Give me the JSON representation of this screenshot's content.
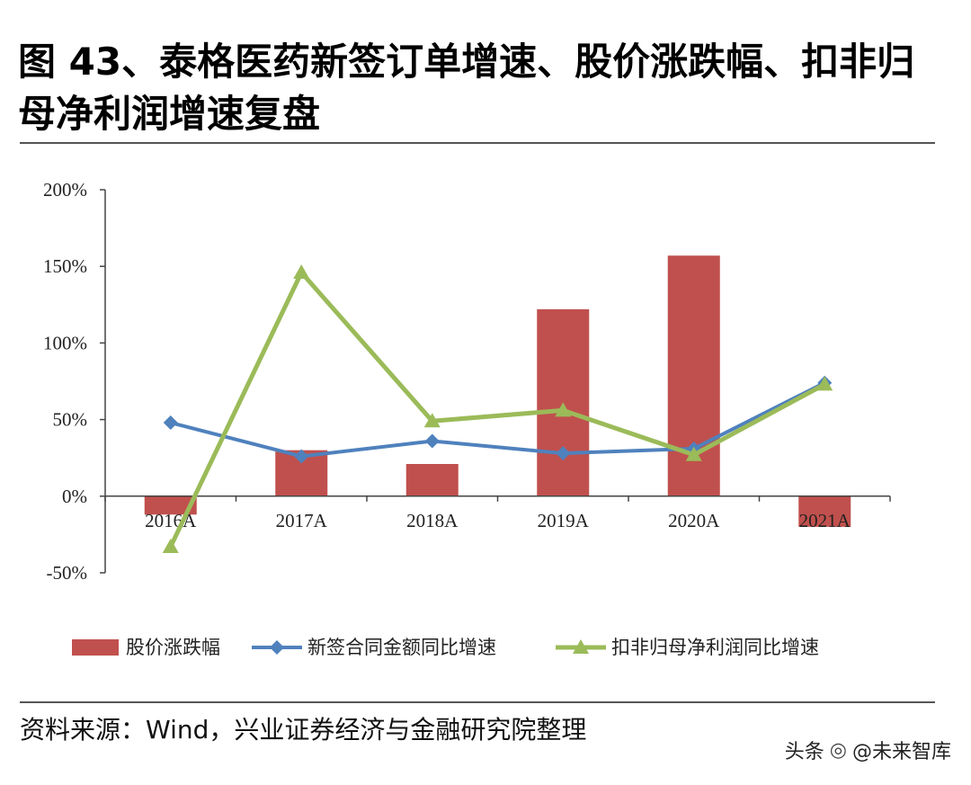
{
  "title": "图 43、泰格医药新签订单增速、股价涨跌幅、扣非归母净利润增速复盘",
  "source": "资料来源：Wind，兴业证券经济与金融研究院整理",
  "watermark": {
    "prefix": "头条",
    "handle": "@未来智库"
  },
  "colors": {
    "bar": "#c0504d",
    "blue": "#4f81bd",
    "green": "#9bbb59",
    "axis": "#444444"
  },
  "chart_data": {
    "type": "bar+line",
    "categories": [
      "2016A",
      "2017A",
      "2018A",
      "2019A",
      "2020A",
      "2021A"
    ],
    "ylim": [
      -50,
      200
    ],
    "yticks": [
      -50,
      0,
      50,
      100,
      150,
      200
    ],
    "ytick_labels": [
      "-50%",
      "0%",
      "50%",
      "100%",
      "150%",
      "200%"
    ],
    "series": [
      {
        "name": "股价涨跌幅",
        "kind": "bar",
        "color": "#c0504d",
        "values": [
          -12,
          30,
          21,
          122,
          157,
          -20
        ]
      },
      {
        "name": "新签合同金额同比增速",
        "kind": "line",
        "marker": "diamond",
        "color": "#4f81bd",
        "values": [
          48,
          26,
          36,
          28,
          31,
          74
        ]
      },
      {
        "name": "扣非归母净利润同比增速",
        "kind": "line",
        "marker": "triangle",
        "color": "#9bbb59",
        "values": [
          -33,
          146,
          49,
          56,
          27,
          73
        ]
      }
    ]
  }
}
